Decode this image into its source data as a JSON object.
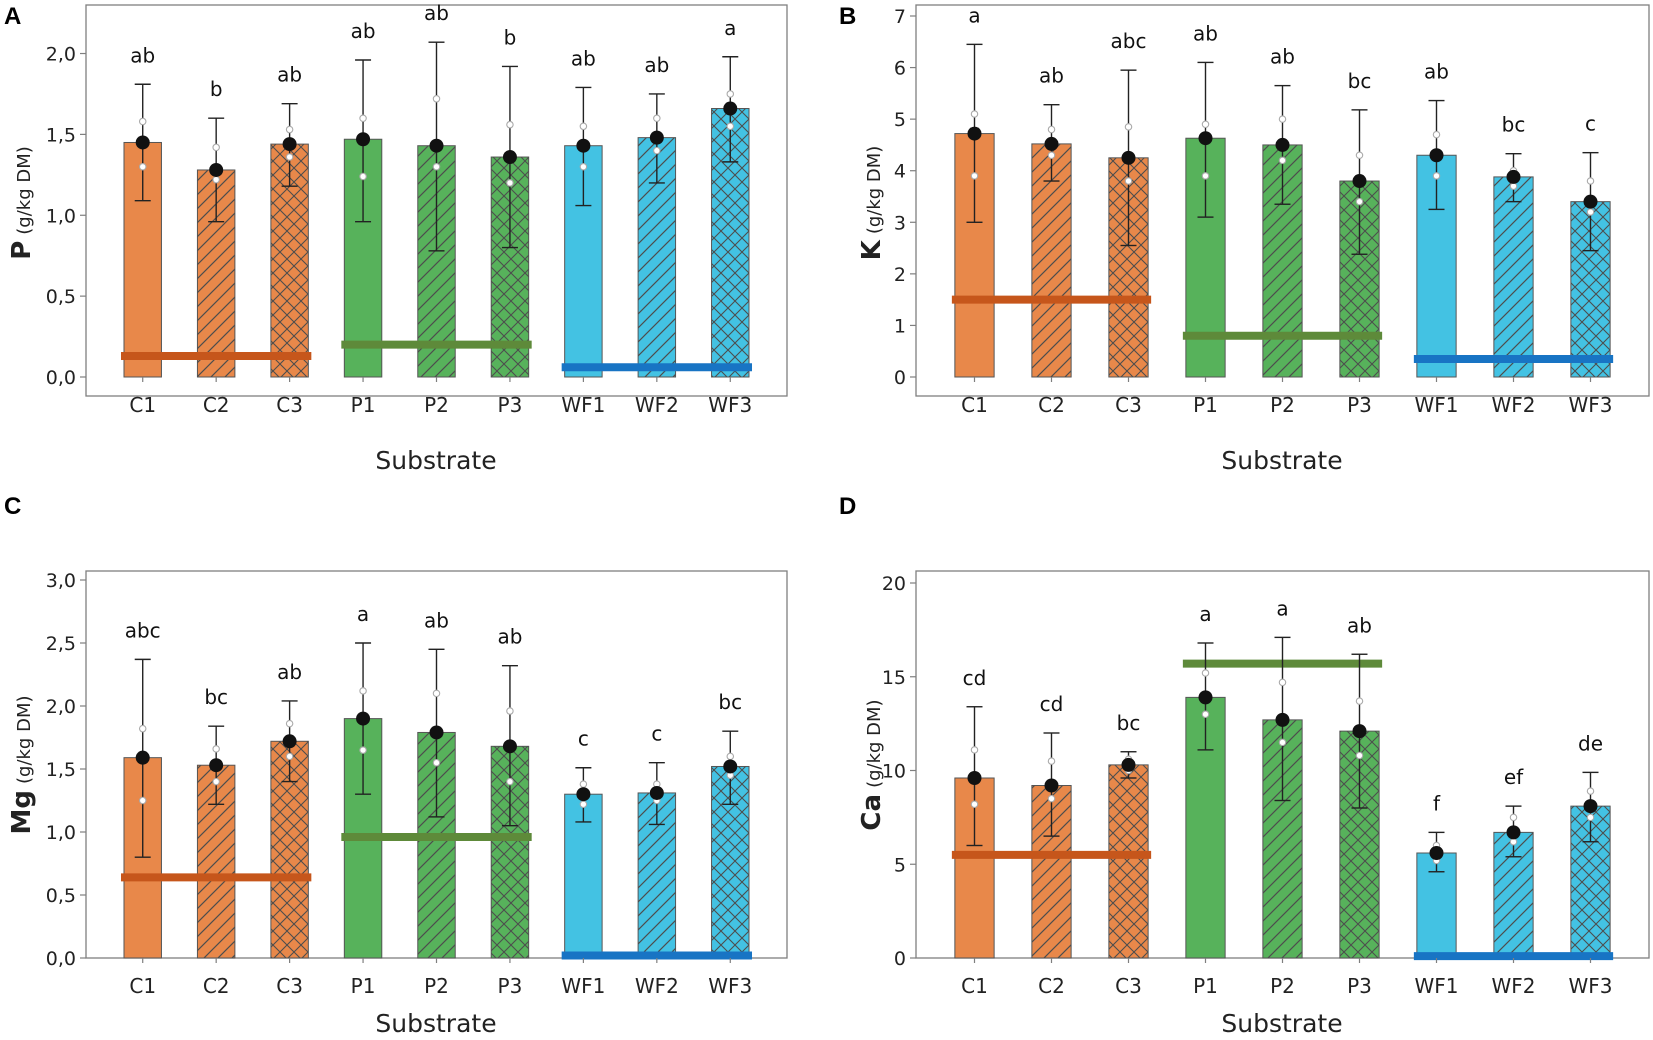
{
  "colors": {
    "C_fill": "#E8884A",
    "P_fill": "#57B25B",
    "WF_fill": "#43C2E3",
    "C_ref": "#C6561B",
    "P_ref": "#5E8A3A",
    "WF_ref": "#1874C4",
    "hatch": "#4d4d4d"
  },
  "chart_data": [
    {
      "panel": "A",
      "type": "bar",
      "categories": [
        "C1",
        "C2",
        "C3",
        "P1",
        "P2",
        "P3",
        "WF1",
        "WF2",
        "WF3"
      ],
      "values": [
        1.45,
        1.28,
        1.44,
        1.47,
        1.43,
        1.36,
        1.43,
        1.48,
        1.66
      ],
      "errors": [
        [
          1.09,
          1.81
        ],
        [
          0.96,
          1.6
        ],
        [
          1.18,
          1.69
        ],
        [
          0.96,
          1.96
        ],
        [
          0.78,
          2.07
        ],
        [
          0.8,
          1.92
        ],
        [
          1.06,
          1.79
        ],
        [
          1.2,
          1.75
        ],
        [
          1.33,
          1.98
        ]
      ],
      "replicates": [
        [
          1.3,
          1.58
        ],
        [
          1.22,
          1.42
        ],
        [
          1.36,
          1.53
        ],
        [
          1.24,
          1.6
        ],
        [
          1.3,
          1.72
        ],
        [
          1.2,
          1.56
        ],
        [
          1.3,
          1.55
        ],
        [
          1.4,
          1.6
        ],
        [
          1.55,
          1.75
        ]
      ],
      "reference_lines": [
        {
          "group": "C",
          "value": 0.13
        },
        {
          "group": "P",
          "value": 0.2
        },
        {
          "group": "WF",
          "value": 0.06
        }
      ],
      "significance": [
        "ab",
        "b",
        "ab",
        "ab",
        "ab",
        "b",
        "ab",
        "ab",
        "a"
      ],
      "ylim": [
        0,
        2.3
      ],
      "yticks": [
        "0,0",
        "0,5",
        "1,0",
        "1,5",
        "2,0"
      ],
      "ylabel_main": "P",
      "ylabel_unit": "(g/kg DM)",
      "xlabel": "Substrate"
    },
    {
      "panel": "B",
      "type": "bar",
      "categories": [
        "C1",
        "C2",
        "C3",
        "P1",
        "P2",
        "P3",
        "WF1",
        "WF2",
        "WF3"
      ],
      "values": [
        4.72,
        4.52,
        4.25,
        4.63,
        4.5,
        3.8,
        4.3,
        3.88,
        3.4
      ],
      "errors": [
        [
          3.0,
          6.45
        ],
        [
          3.8,
          5.28
        ],
        [
          2.55,
          5.95
        ],
        [
          3.1,
          6.1
        ],
        [
          3.35,
          5.65
        ],
        [
          2.38,
          5.18
        ],
        [
          3.25,
          5.36
        ],
        [
          3.4,
          4.33
        ],
        [
          2.45,
          4.35
        ]
      ],
      "replicates": [
        [
          3.9,
          5.1
        ],
        [
          4.3,
          4.8
        ],
        [
          3.8,
          4.85
        ],
        [
          3.9,
          4.9
        ],
        [
          4.2,
          5.0
        ],
        [
          3.4,
          4.3
        ],
        [
          3.9,
          4.7
        ],
        [
          3.7,
          4.0
        ],
        [
          3.2,
          3.8
        ]
      ],
      "reference_lines": [
        {
          "group": "C",
          "value": 1.5
        },
        {
          "group": "P",
          "value": 0.8
        },
        {
          "group": "WF",
          "value": 0.35
        }
      ],
      "significance": [
        "a",
        "ab",
        "abc",
        "ab",
        "ab",
        "bc",
        "ab",
        "bc",
        "c"
      ],
      "ylim": [
        0,
        7
      ],
      "yticks": [
        "0",
        "1",
        "2",
        "3",
        "4",
        "5",
        "6",
        "7"
      ],
      "ylabel_main": "K",
      "ylabel_unit": "(g/kg DM)",
      "xlabel": "Substrate"
    },
    {
      "panel": "C",
      "type": "bar",
      "categories": [
        "C1",
        "C2",
        "C3",
        "P1",
        "P2",
        "P3",
        "WF1",
        "WF2",
        "WF3"
      ],
      "values": [
        1.59,
        1.53,
        1.72,
        1.9,
        1.79,
        1.68,
        1.3,
        1.31,
        1.52
      ],
      "errors": [
        [
          0.8,
          2.37
        ],
        [
          1.22,
          1.84
        ],
        [
          1.4,
          2.04
        ],
        [
          1.3,
          2.5
        ],
        [
          1.12,
          2.45
        ],
        [
          1.05,
          2.32
        ],
        [
          1.08,
          1.51
        ],
        [
          1.06,
          1.55
        ],
        [
          1.22,
          1.8
        ]
      ],
      "replicates": [
        [
          1.25,
          1.82
        ],
        [
          1.4,
          1.66
        ],
        [
          1.6,
          1.86
        ],
        [
          1.65,
          2.12
        ],
        [
          1.55,
          2.1
        ],
        [
          1.4,
          1.96
        ],
        [
          1.22,
          1.38
        ],
        [
          1.25,
          1.38
        ],
        [
          1.45,
          1.6
        ]
      ],
      "reference_lines": [
        {
          "group": "C",
          "value": 0.64
        },
        {
          "group": "P",
          "value": 0.96
        },
        {
          "group": "WF",
          "value": 0.02
        }
      ],
      "significance": [
        "abc",
        "bc",
        "ab",
        "a",
        "ab",
        "ab",
        "c",
        "c",
        "bc"
      ],
      "ylim": [
        0,
        3.0
      ],
      "yticks": [
        "0,0",
        "0,5",
        "1,0",
        "1,5",
        "2,0",
        "2,5",
        "3,0"
      ],
      "ylabel_main": "Mg",
      "ylabel_unit": "(g/kg DM)",
      "xlabel": "Substrate"
    },
    {
      "panel": "D",
      "type": "bar",
      "categories": [
        "C1",
        "C2",
        "C3",
        "P1",
        "P2",
        "P3",
        "WF1",
        "WF2",
        "WF3"
      ],
      "values": [
        9.6,
        9.2,
        10.3,
        13.9,
        12.7,
        12.1,
        5.6,
        6.7,
        8.1
      ],
      "errors": [
        [
          6.0,
          13.4
        ],
        [
          6.5,
          12.0
        ],
        [
          9.6,
          11.0
        ],
        [
          11.1,
          16.8
        ],
        [
          8.4,
          17.1
        ],
        [
          8.0,
          16.2
        ],
        [
          4.6,
          6.7
        ],
        [
          5.4,
          8.1
        ],
        [
          6.2,
          9.9
        ]
      ],
      "replicates": [
        [
          8.2,
          11.1
        ],
        [
          8.5,
          10.5
        ],
        [
          10.0,
          10.6
        ],
        [
          13.0,
          15.2
        ],
        [
          11.5,
          14.7
        ],
        [
          10.8,
          13.7
        ],
        [
          5.2,
          6.0
        ],
        [
          6.2,
          7.5
        ],
        [
          7.5,
          8.9
        ]
      ],
      "reference_lines": [
        {
          "group": "C",
          "value": 5.5
        },
        {
          "group": "P",
          "value": 15.7
        },
        {
          "group": "WF",
          "value": 0.1
        }
      ],
      "significance": [
        "cd",
        "cd",
        "bc",
        "a",
        "a",
        "ab",
        "f",
        "ef",
        "de"
      ],
      "ylim": [
        0,
        20
      ],
      "yticks": [
        "0",
        "5",
        "10",
        "15",
        "20"
      ],
      "ylabel_main": "Ca",
      "ylabel_unit": "(g/kg DM)",
      "xlabel": "Substrate"
    }
  ]
}
